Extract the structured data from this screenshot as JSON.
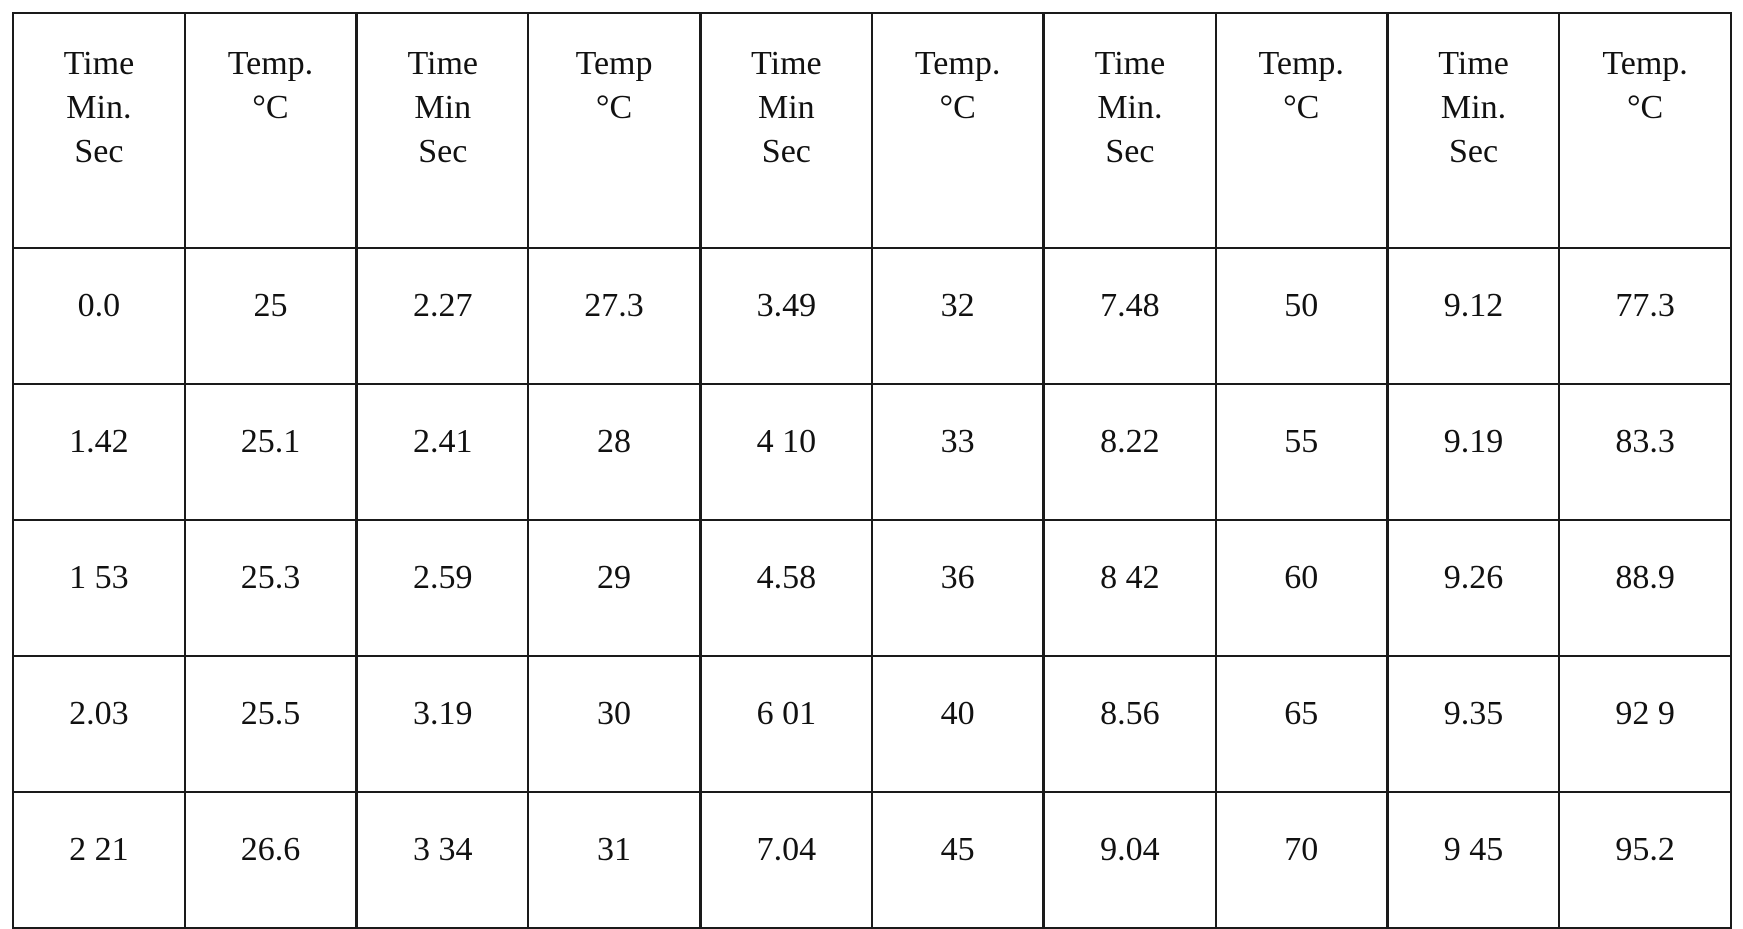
{
  "table": {
    "groups": 5,
    "header": {
      "time": [
        "Time",
        "Min.",
        "Sec"
      ],
      "temp": [
        "Temp.",
        "°C"
      ],
      "cells": [
        [
          "Time",
          "Min.",
          "Sec"
        ],
        [
          "Temp.",
          "°C"
        ],
        [
          "Time",
          "Min",
          "Sec"
        ],
        [
          "Temp",
          "°C"
        ],
        [
          "Time",
          "Min",
          "Sec"
        ],
        [
          "Temp.",
          "°C"
        ],
        [
          "Time",
          "Min.",
          "Sec"
        ],
        [
          "Temp.",
          "°C"
        ],
        [
          "Time",
          "Min.",
          "Sec"
        ],
        [
          "Temp.",
          "°C"
        ]
      ]
    },
    "rows": [
      [
        "0.0",
        "25",
        "2.27",
        "27.3",
        "3.49",
        "32",
        "7.48",
        "50",
        "9.12",
        "77.3"
      ],
      [
        "1.42",
        "25.1",
        "2.41",
        "28",
        "4 10",
        "33",
        "8.22",
        "55",
        "9.19",
        "83.3"
      ],
      [
        "1 53",
        "25.3",
        "2.59",
        "29",
        "4.58",
        "36",
        "8 42",
        "60",
        "9.26",
        "88.9"
      ],
      [
        "2.03",
        "25.5",
        "3.19",
        "30",
        "6 01",
        "40",
        "8.56",
        "65",
        "9.35",
        "92 9"
      ],
      [
        "2 21",
        "26.6",
        "3 34",
        "31",
        "7.04",
        "45",
        "9.04",
        "70",
        "9 45",
        "95.2"
      ]
    ]
  }
}
